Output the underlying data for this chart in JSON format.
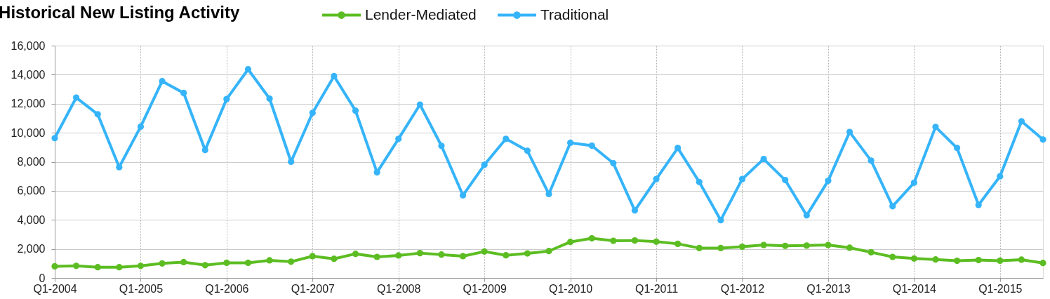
{
  "chart_data": {
    "type": "line",
    "title": "Historical New Listing Activity",
    "categories": [
      "Q1-2004",
      null,
      null,
      null,
      "Q1-2005",
      null,
      null,
      null,
      "Q1-2006",
      null,
      null,
      null,
      "Q1-2007",
      null,
      null,
      null,
      "Q1-2008",
      null,
      null,
      null,
      "Q1-2009",
      null,
      null,
      null,
      "Q1-2010",
      null,
      null,
      null,
      "Q1-2011",
      null,
      null,
      null,
      "Q1-2012",
      null,
      null,
      null,
      "Q1-2013",
      null,
      null,
      null,
      "Q1-2014",
      null,
      null,
      null,
      "Q1-2015",
      null,
      null
    ],
    "series": [
      {
        "name": "Lender-Mediated",
        "color": "#5cbd22",
        "values": [
          800,
          830,
          740,
          740,
          830,
          1000,
          1090,
          880,
          1040,
          1040,
          1210,
          1120,
          1500,
          1320,
          1660,
          1450,
          1550,
          1710,
          1610,
          1500,
          1820,
          1560,
          1690,
          1850,
          2480,
          2730,
          2560,
          2580,
          2500,
          2350,
          2060,
          2060,
          2150,
          2270,
          2210,
          2230,
          2270,
          2080,
          1770,
          1450,
          1340,
          1270,
          1180,
          1230,
          1190,
          1260,
          1030
        ]
      },
      {
        "name": "Traditional",
        "color": "#35b4f9",
        "values": [
          9630,
          12420,
          11270,
          7630,
          10420,
          13550,
          12740,
          8810,
          12320,
          14370,
          12350,
          8000,
          11370,
          13900,
          11520,
          7270,
          9580,
          11940,
          9100,
          5690,
          7790,
          9580,
          8760,
          5780,
          9310,
          9110,
          7900,
          4650,
          6810,
          8950,
          6610,
          3980,
          6810,
          8190,
          6740,
          4310,
          6690,
          10050,
          8080,
          4940,
          6560,
          10400,
          8950,
          5030,
          7000,
          10790,
          9530
        ]
      }
    ],
    "ylim": [
      0,
      16000
    ],
    "yticks": [
      0,
      {
        "value": 2000,
        "label": "2,000"
      },
      {
        "value": 4000,
        "label": "4,000"
      },
      {
        "value": 6000,
        "label": "6,000"
      },
      {
        "value": 8000,
        "label": "8,000"
      },
      {
        "value": 10000,
        "label": "10,000"
      },
      {
        "value": 12000,
        "label": "12,000"
      },
      {
        "value": 14000,
        "label": "14,000"
      },
      {
        "value": 16000,
        "label": "16,000"
      }
    ],
    "grid": true,
    "legend": "top",
    "marker": "circle",
    "line_style": "solid"
  }
}
